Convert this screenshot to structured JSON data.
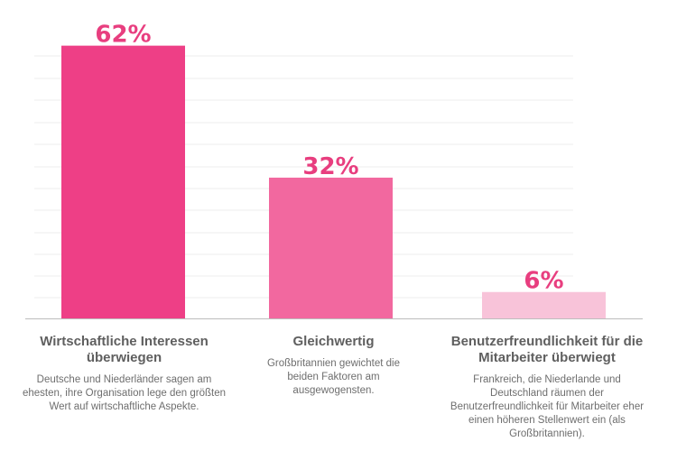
{
  "chart_data": {
    "type": "bar",
    "title": "",
    "xlabel": "",
    "ylabel": "",
    "ylim": [
      0,
      65
    ],
    "grid": true,
    "categories": [
      "Wirtschaftliche Interessen überwiegen",
      "Gleichwertig",
      "Benutzerfreundlichkeit für die Mitarbeiter überwiegt"
    ],
    "values": [
      62,
      32,
      6
    ],
    "value_labels": [
      "62%",
      "32%",
      "6%"
    ],
    "descriptions": [
      "Deutsche und Niederländer sagen am ehesten, ihre Organisation lege den größten Wert auf wirtschaftliche Aspekte.",
      "Großbritannien gewichtet die beiden Faktoren am ausgewogensten.",
      "Frankreich, die Niederlande und Deutschland räumen der Benutzerfreundlichkeit für Mitarbeiter eher einen höheren Stellenwert ein (als Großbritannien)."
    ],
    "bar_colors": [
      "#ee3f86",
      "#f2689f",
      "#f8c3d9"
    ],
    "value_label_color": "#e83e7f"
  }
}
